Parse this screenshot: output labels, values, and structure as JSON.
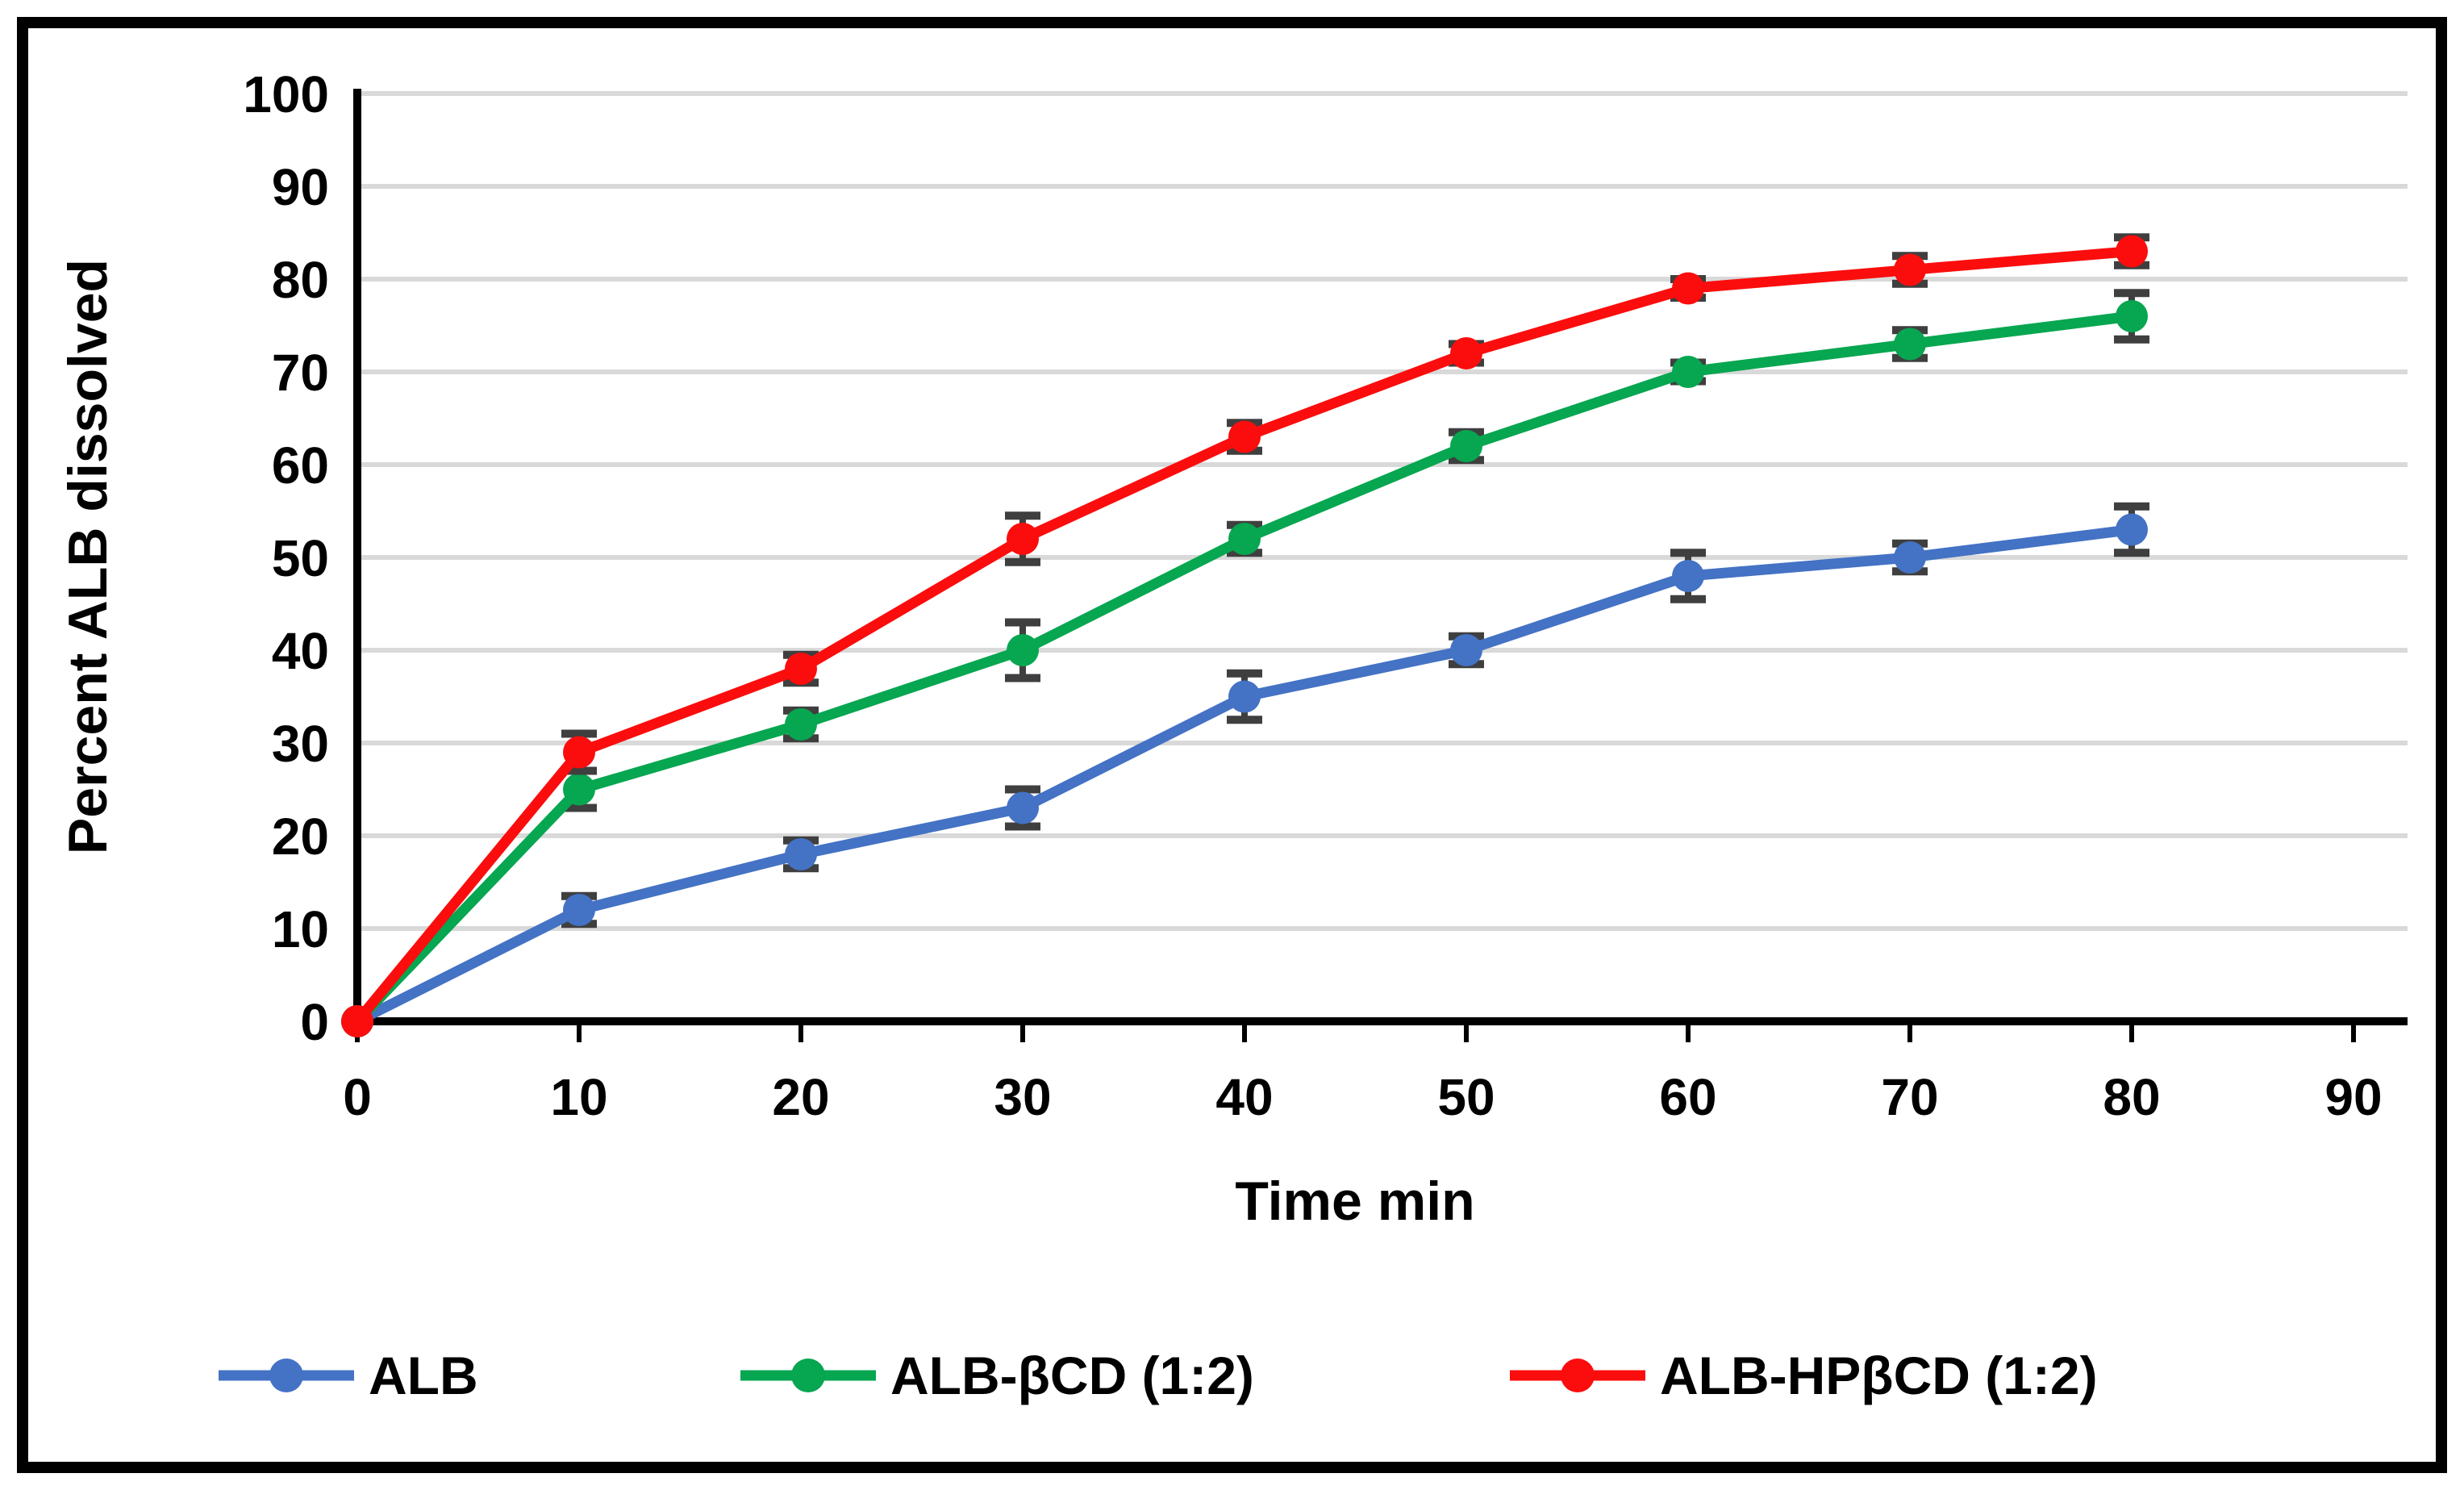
{
  "figure": {
    "y_axis_title": "Percent ALB dissolved",
    "x_axis_title": "Time min"
  },
  "chart_data": {
    "type": "line",
    "title": "",
    "xlabel": "Time min",
    "ylabel": "Percent ALB dissolved",
    "x": [
      0,
      10,
      20,
      30,
      40,
      50,
      60,
      70,
      80
    ],
    "x_tick_labels": [
      "0",
      "10",
      "20",
      "30",
      "40",
      "50",
      "60",
      "70",
      "80",
      "90"
    ],
    "x_ticks": [
      0,
      10,
      20,
      30,
      40,
      50,
      60,
      70,
      80,
      90
    ],
    "y_tick_labels": [
      "0",
      "10",
      "20",
      "30",
      "40",
      "50",
      "60",
      "70",
      "80",
      "90",
      "100"
    ],
    "y_ticks": [
      0,
      10,
      20,
      30,
      40,
      50,
      60,
      70,
      80,
      90,
      100
    ],
    "xlim": [
      0,
      90
    ],
    "ylim": [
      0,
      100
    ],
    "grid": "horizontal-only",
    "legend_position": "bottom",
    "series": [
      {
        "name": "ALB",
        "color": "#4472C4",
        "marker": "circle",
        "values": [
          0,
          12,
          18,
          23,
          35,
          40,
          48,
          50,
          53
        ],
        "error_bars": [
          0,
          1.5,
          1.5,
          2,
          2.5,
          1.5,
          2.5,
          1.5,
          2.5
        ]
      },
      {
        "name": "ALB-βCD (1:2)",
        "color": "#07A650",
        "marker": "circle",
        "values": [
          0,
          25,
          32,
          40,
          52,
          62,
          70,
          73,
          76
        ],
        "error_bars": [
          0,
          2,
          1.5,
          3,
          1.5,
          1.5,
          1,
          1.5,
          2.5
        ]
      },
      {
        "name": "ALB-HPβCD (1:2)",
        "color": "#FB0D0D",
        "marker": "circle",
        "values": [
          0,
          29,
          38,
          52,
          63,
          72,
          79,
          81,
          83
        ],
        "error_bars": [
          0,
          2,
          1.5,
          2.5,
          1.5,
          1,
          1,
          1.5,
          1.5
        ]
      }
    ],
    "colors": {
      "gridline": "#D9D9D9",
      "axis": "#000000",
      "error_bar": "#3F3F3F",
      "frame_border": "#000000",
      "background": "#FFFFFF"
    }
  }
}
